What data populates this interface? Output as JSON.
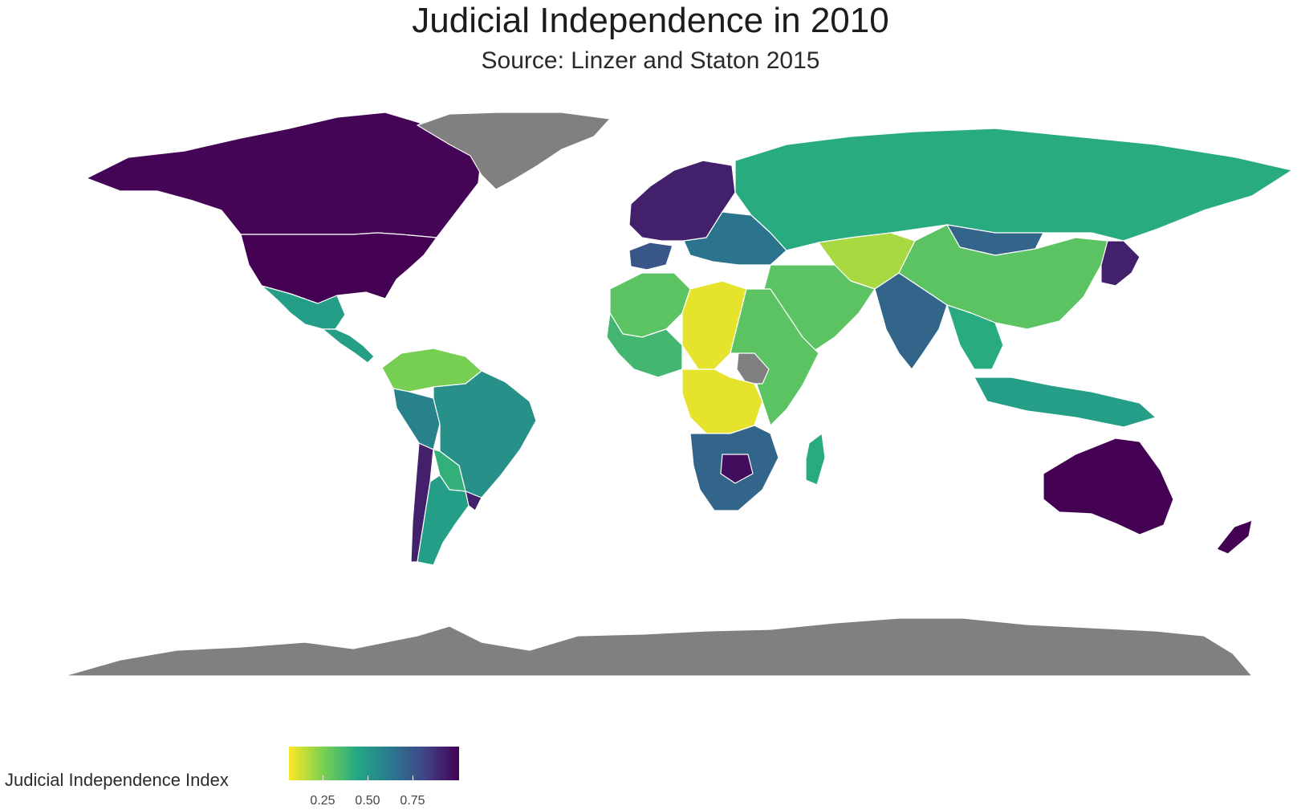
{
  "title": "Judicial Independence in 2010",
  "subtitle": "Source: Linzer and Staton 2015",
  "legend": {
    "title": "Judicial Independence Index",
    "ticks": [
      "0.25",
      "0.50",
      "0.75"
    ],
    "tick_values": [
      0.25,
      0.5,
      0.75
    ],
    "range": [
      0.07,
      0.93
    ],
    "colors": [
      "#fde725",
      "#7ad151",
      "#22a884",
      "#2a788e",
      "#414487",
      "#440154"
    ]
  },
  "colors": {
    "no_data": "#808080",
    "border": "#ffffff",
    "background": "#ffffff"
  },
  "regions": [
    {
      "name": "Canada",
      "value": 0.92
    },
    {
      "name": "United States",
      "value": 0.93
    },
    {
      "name": "Greenland",
      "value": null
    },
    {
      "name": "Mexico",
      "value": 0.45
    },
    {
      "name": "Central America",
      "value": 0.45
    },
    {
      "name": "Colombia / Venezuela",
      "value": 0.25
    },
    {
      "name": "Peru",
      "value": 0.55
    },
    {
      "name": "Brazil",
      "value": 0.5
    },
    {
      "name": "Bolivia / Paraguay",
      "value": 0.38
    },
    {
      "name": "Chile",
      "value": 0.85
    },
    {
      "name": "Argentina",
      "value": 0.45
    },
    {
      "name": "Uruguay",
      "value": 0.85
    },
    {
      "name": "Western Europe",
      "value": 0.85
    },
    {
      "name": "Iberia",
      "value": 0.7
    },
    {
      "name": "Eastern Europe",
      "value": 0.6
    },
    {
      "name": "Russia",
      "value": 0.4
    },
    {
      "name": "Central Asia",
      "value": 0.18
    },
    {
      "name": "Mongolia",
      "value": 0.65
    },
    {
      "name": "China",
      "value": 0.3
    },
    {
      "name": "Japan / Korea",
      "value": 0.85
    },
    {
      "name": "Middle East",
      "value": 0.3
    },
    {
      "name": "India",
      "value": 0.65
    },
    {
      "name": "Southeast Asia",
      "value": 0.4
    },
    {
      "name": "Indonesia",
      "value": 0.45
    },
    {
      "name": "North Africa",
      "value": 0.3
    },
    {
      "name": "West Africa",
      "value": 0.35
    },
    {
      "name": "Chad / Libya",
      "value": 0.1
    },
    {
      "name": "East Africa",
      "value": 0.3
    },
    {
      "name": "South Sudan",
      "value": null
    },
    {
      "name": "Central Africa",
      "value": 0.1
    },
    {
      "name": "Southern Africa",
      "value": 0.65
    },
    {
      "name": "Botswana",
      "value": 0.9
    },
    {
      "name": "Madagascar",
      "value": 0.4
    },
    {
      "name": "Australia",
      "value": 0.93
    },
    {
      "name": "New Zealand",
      "value": 0.93
    },
    {
      "name": "Antarctica",
      "value": null
    }
  ]
}
